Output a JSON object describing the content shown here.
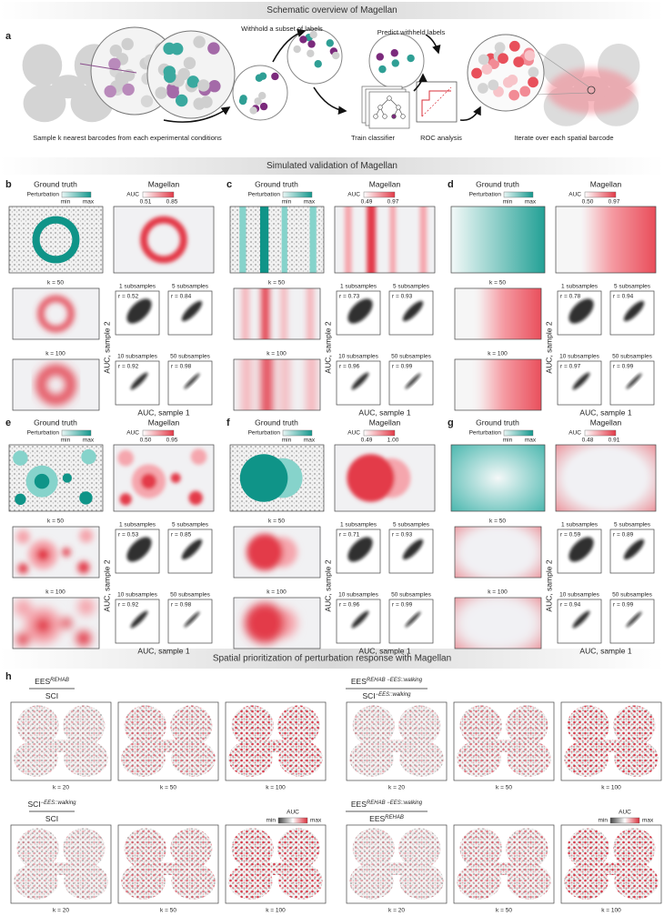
{
  "sections": [
    "Schematic overview of Magellan",
    "Simulated validation of Magellan",
    "Spatial prioritization of perturbation response with Magellan"
  ],
  "panel_a": {
    "label": "a",
    "withhold": "Withhold a subset of labels",
    "predict": "Predict withheld labels",
    "sample": "Sample k nearest barcodes from each experimental conditions",
    "train": "Train classifier",
    "roc": "ROC analysis",
    "iterate": "Iterate over each spatial barcode"
  },
  "panels": [
    {
      "label": "b",
      "ground_truth": "Ground truth",
      "magellan": "Magellan",
      "perturbation": "Perturbation",
      "min": "min",
      "max": "max",
      "auc": "AUC",
      "auc_min": "0.51",
      "auc_max": "0.85",
      "k_labels": [
        "k = 50",
        "k = 100"
      ],
      "subsamples": [
        {
          "label": "1 subsamples",
          "r": "r = 0.52"
        },
        {
          "label": "5 subsamples",
          "r": "r = 0.84"
        },
        {
          "label": "10 subsamples",
          "r": "r = 0.92"
        },
        {
          "label": "50 subsamples",
          "r": "r = 0.98"
        }
      ],
      "y_axis": "AUC, sample 2",
      "x_axis": "AUC, sample 1"
    },
    {
      "label": "c",
      "ground_truth": "Ground truth",
      "magellan": "Magellan",
      "perturbation": "Perturbation",
      "min": "min",
      "max": "max",
      "auc": "AUC",
      "auc_min": "0.49",
      "auc_max": "0.97",
      "k_labels": [
        "k = 50",
        "k = 100"
      ],
      "subsamples": [
        {
          "label": "1 subsamples",
          "r": "r = 0.73"
        },
        {
          "label": "5 subsamples",
          "r": "r = 0.93"
        },
        {
          "label": "10 subsamples",
          "r": "r = 0.96"
        },
        {
          "label": "50 subsamples",
          "r": "r = 0.99"
        }
      ],
      "y_axis": "AUC, sample 2",
      "x_axis": "AUC, sample 1"
    },
    {
      "label": "d",
      "ground_truth": "Ground truth",
      "magellan": "Magellan",
      "perturbation": "Perturbation",
      "min": "min",
      "max": "max",
      "auc": "AUC",
      "auc_min": "0.50",
      "auc_max": "0.97",
      "k_labels": [
        "k = 50",
        "k = 100"
      ],
      "subsamples": [
        {
          "label": "1 subsamples",
          "r": "r = 0.78"
        },
        {
          "label": "5 subsamples",
          "r": "r = 0.94"
        },
        {
          "label": "10 subsamples",
          "r": "r = 0.97"
        },
        {
          "label": "50 subsamples",
          "r": "r = 0.99"
        }
      ],
      "y_axis": "AUC, sample 2",
      "x_axis": "AUC, sample 1"
    },
    {
      "label": "e",
      "ground_truth": "Ground truth",
      "magellan": "Magellan",
      "perturbation": "Perturbation",
      "min": "min",
      "max": "max",
      "auc": "AUC",
      "auc_min": "0.50",
      "auc_max": "0.95",
      "k_labels": [
        "k = 50",
        "k = 100"
      ],
      "subsamples": [
        {
          "label": "1 subsamples",
          "r": "r = 0.53"
        },
        {
          "label": "5 subsamples",
          "r": "r = 0.85"
        },
        {
          "label": "10 subsamples",
          "r": "r = 0.92"
        },
        {
          "label": "50 subsamples",
          "r": "r = 0.98"
        }
      ],
      "y_axis": "AUC, sample 2",
      "x_axis": "AUC, sample 1"
    },
    {
      "label": "f",
      "ground_truth": "Ground truth",
      "magellan": "Magellan",
      "perturbation": "Perturbation",
      "min": "min",
      "max": "max",
      "auc": "AUC",
      "auc_min": "0.49",
      "auc_max": "1.00",
      "k_labels": [
        "k = 50",
        "k = 100"
      ],
      "subsamples": [
        {
          "label": "1 subsamples",
          "r": "r = 0.71"
        },
        {
          "label": "5 subsamples",
          "r": "r = 0.93"
        },
        {
          "label": "10 subsamples",
          "r": "r = 0.96"
        },
        {
          "label": "50 subsamples",
          "r": "r = 0.99"
        }
      ],
      "y_axis": "AUC, sample 2",
      "x_axis": "AUC, sample 1"
    },
    {
      "label": "g",
      "ground_truth": "Ground truth",
      "magellan": "Magellan",
      "perturbation": "Perturbation",
      "min": "min",
      "max": "max",
      "auc": "AUC",
      "auc_min": "0.48",
      "auc_max": "0.91",
      "k_labels": [
        "k = 50",
        "k = 100"
      ],
      "subsamples": [
        {
          "label": "1 subsamples",
          "r": "r = 0.59"
        },
        {
          "label": "5 subsamples",
          "r": "r = 0.89"
        },
        {
          "label": "10 subsamples",
          "r": "r = 0.94"
        },
        {
          "label": "50 subsamples",
          "r": "r = 0.99"
        }
      ],
      "y_axis": "AUC, sample 2",
      "x_axis": "AUC, sample 1"
    }
  ],
  "panel_h": {
    "label": "h",
    "groups": [
      {
        "numerator": {
          "base": "EES",
          "sup": "REHAB"
        },
        "denominator": {
          "base": "SCI"
        },
        "k_labels": [
          "k = 20",
          "k = 50",
          "k = 100"
        ]
      },
      {
        "numerator": {
          "base": "SCI",
          "sup": "−EES::walking"
        },
        "denominator": {
          "base": "SCI"
        },
        "k_labels": [
          "k = 20",
          "k = 50",
          "k = 100"
        ],
        "legend": {
          "title": "AUC",
          "min": "min",
          "max": "max"
        }
      },
      {
        "numerator": {
          "base": "EES",
          "sup": "REHAB −EES::walking"
        },
        "denominator": {
          "base": "SCI",
          "sup": "−EES::walking"
        },
        "k_labels": [
          "k = 20",
          "k = 50",
          "k = 100"
        ]
      },
      {
        "numerator": {
          "base": "EES",
          "sup": "REHAB −EES::walking"
        },
        "denominator": {
          "base": "EES",
          "sup": "REHAB"
        },
        "k_labels": [
          "k = 20",
          "k = 50",
          "k = 100"
        ],
        "legend": {
          "title": "AUC",
          "min": "min",
          "max": "max"
        }
      }
    ]
  }
}
